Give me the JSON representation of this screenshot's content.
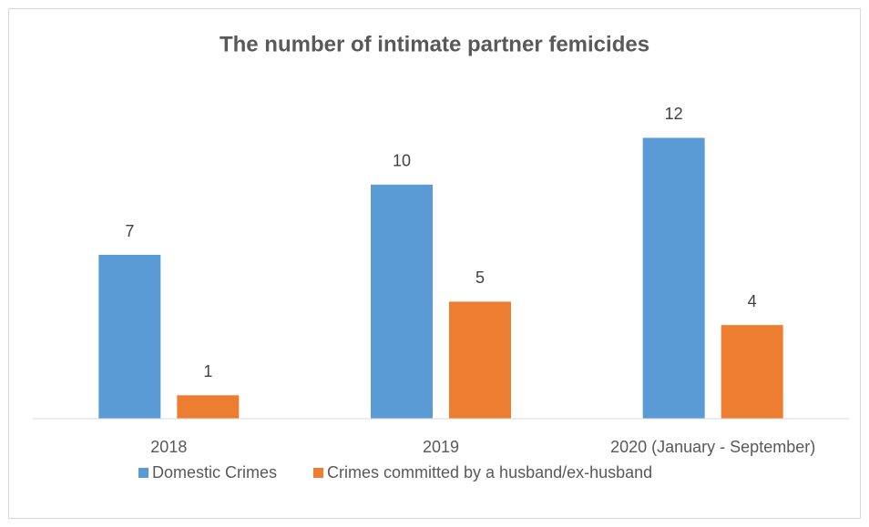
{
  "chart_data": {
    "type": "bar",
    "title": "The number of intimate partner femicides",
    "categories": [
      "2018",
      "2019",
      "2020 (January - September)"
    ],
    "series": [
      {
        "name": "Domestic Crimes",
        "color": "#5b9bd5",
        "values": [
          7,
          10,
          12
        ]
      },
      {
        "name": "Crimes committed by a husband/ex-husband",
        "color": "#ed7d31",
        "values": [
          1,
          5,
          4
        ]
      }
    ],
    "ylim": [
      0,
      14
    ],
    "legend": "bottom"
  }
}
